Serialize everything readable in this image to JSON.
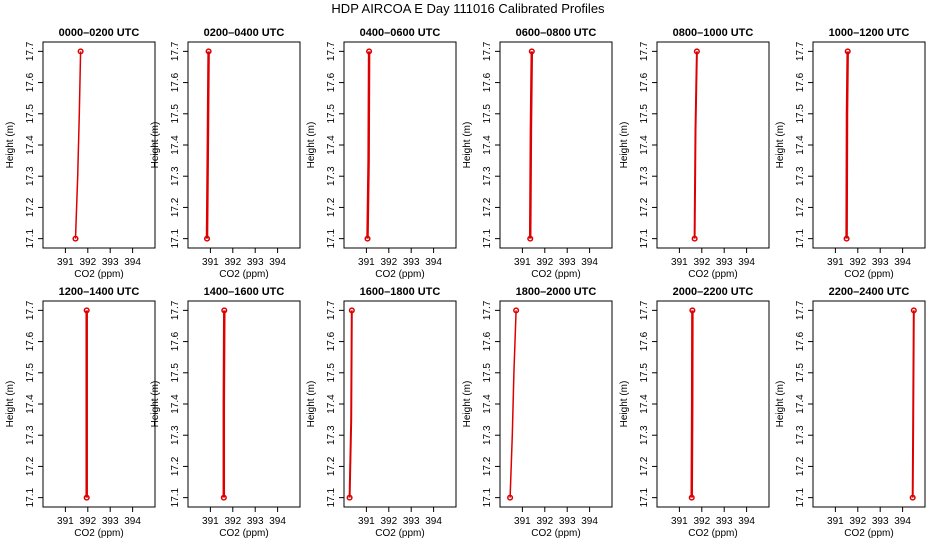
{
  "figure_title": "HDP AIRCOA E  Day 111016  Calibrated Profiles",
  "chart_data": [
    {
      "type": "line",
      "title": "0000–0200 UTC",
      "xlabel": "CO2 (ppm)",
      "ylabel": "Height (m)",
      "xlim": [
        390,
        395
      ],
      "ylim": [
        17.07,
        17.73
      ],
      "x_ticks": [
        "391",
        "392",
        "393",
        "394"
      ],
      "y_ticks": [
        "17.1",
        "17.2",
        "17.3",
        "17.4",
        "17.5",
        "17.6",
        "17.7"
      ],
      "series": [
        {
          "values": [
            [
              391.45,
              17.1
            ],
            [
              391.55,
              17.3
            ],
            [
              391.62,
              17.5
            ],
            [
              391.68,
              17.7
            ]
          ],
          "width": 1.5
        }
      ]
    },
    {
      "type": "line",
      "title": "0200–0400 UTC",
      "xlabel": "CO2 (ppm)",
      "ylabel": "Height (m)",
      "xlim": [
        390,
        395
      ],
      "ylim": [
        17.07,
        17.73
      ],
      "x_ticks": [
        "391",
        "392",
        "393",
        "394"
      ],
      "y_ticks": [
        "17.1",
        "17.2",
        "17.3",
        "17.4",
        "17.5",
        "17.6",
        "17.7"
      ],
      "series": [
        {
          "values": [
            [
              390.85,
              17.1
            ],
            [
              390.88,
              17.35
            ],
            [
              390.92,
              17.7
            ]
          ],
          "width": 2.5
        }
      ]
    },
    {
      "type": "line",
      "title": "0400–0600 UTC",
      "xlabel": "CO2 (ppm)",
      "ylabel": "Height (m)",
      "xlim": [
        390,
        395
      ],
      "ylim": [
        17.07,
        17.73
      ],
      "x_ticks": [
        "391",
        "392",
        "393",
        "394"
      ],
      "y_ticks": [
        "17.1",
        "17.2",
        "17.3",
        "17.4",
        "17.5",
        "17.6",
        "17.7"
      ],
      "series": [
        {
          "values": [
            [
              391.05,
              17.1
            ],
            [
              391.1,
              17.35
            ],
            [
              391.12,
              17.7
            ]
          ],
          "width": 2.5
        }
      ]
    },
    {
      "type": "line",
      "title": "0600–0800 UTC",
      "xlabel": "CO2 (ppm)",
      "ylabel": "Height (m)",
      "xlim": [
        390,
        395
      ],
      "ylim": [
        17.07,
        17.73
      ],
      "x_ticks": [
        "391",
        "392",
        "393",
        "394"
      ],
      "y_ticks": [
        "17.1",
        "17.2",
        "17.3",
        "17.4",
        "17.5",
        "17.6",
        "17.7"
      ],
      "series": [
        {
          "values": [
            [
              391.35,
              17.1
            ],
            [
              391.38,
              17.45
            ],
            [
              391.42,
              17.7
            ]
          ],
          "width": 2.5
        }
      ]
    },
    {
      "type": "line",
      "title": "0800–1000 UTC",
      "xlabel": "CO2 (ppm)",
      "ylabel": "Height (m)",
      "xlim": [
        390,
        395
      ],
      "ylim": [
        17.07,
        17.73
      ],
      "x_ticks": [
        "391",
        "392",
        "393",
        "394"
      ],
      "y_ticks": [
        "17.1",
        "17.2",
        "17.3",
        "17.4",
        "17.5",
        "17.6",
        "17.7"
      ],
      "series": [
        {
          "values": [
            [
              391.68,
              17.1
            ],
            [
              391.72,
              17.45
            ],
            [
              391.78,
              17.7
            ]
          ],
          "width": 2
        }
      ]
    },
    {
      "type": "line",
      "title": "1000–1200 UTC",
      "xlabel": "CO2 (ppm)",
      "ylabel": "Height (m)",
      "xlim": [
        390,
        395
      ],
      "ylim": [
        17.07,
        17.73
      ],
      "x_ticks": [
        "391",
        "392",
        "393",
        "394"
      ],
      "y_ticks": [
        "17.1",
        "17.2",
        "17.3",
        "17.4",
        "17.5",
        "17.6",
        "17.7"
      ],
      "series": [
        {
          "values": [
            [
              391.5,
              17.1
            ],
            [
              391.52,
              17.5
            ],
            [
              391.55,
              17.7
            ]
          ],
          "width": 2.5
        }
      ]
    },
    {
      "type": "line",
      "title": "1200–1400 UTC",
      "xlabel": "CO2 (ppm)",
      "ylabel": "Height (m)",
      "xlim": [
        390,
        395
      ],
      "ylim": [
        17.07,
        17.73
      ],
      "x_ticks": [
        "391",
        "392",
        "393",
        "394"
      ],
      "y_ticks": [
        "17.1",
        "17.2",
        "17.3",
        "17.4",
        "17.5",
        "17.6",
        "17.7"
      ],
      "series": [
        {
          "values": [
            [
              391.95,
              17.1
            ],
            [
              391.95,
              17.4
            ],
            [
              391.95,
              17.7
            ]
          ],
          "width": 2.5
        }
      ]
    },
    {
      "type": "line",
      "title": "1400–1600 UTC",
      "xlabel": "CO2 (ppm)",
      "ylabel": "Height (m)",
      "xlim": [
        390,
        395
      ],
      "ylim": [
        17.07,
        17.73
      ],
      "x_ticks": [
        "391",
        "392",
        "393",
        "394"
      ],
      "y_ticks": [
        "17.1",
        "17.2",
        "17.3",
        "17.4",
        "17.5",
        "17.6",
        "17.7"
      ],
      "series": [
        {
          "values": [
            [
              391.6,
              17.1
            ],
            [
              391.6,
              17.4
            ],
            [
              391.62,
              17.7
            ]
          ],
          "width": 2.5
        }
      ]
    },
    {
      "type": "line",
      "title": "1600–1800 UTC",
      "xlabel": "CO2 (ppm)",
      "ylabel": "Height (m)",
      "xlim": [
        390,
        395
      ],
      "ylim": [
        17.07,
        17.73
      ],
      "x_ticks": [
        "391",
        "392",
        "393",
        "394"
      ],
      "y_ticks": [
        "17.1",
        "17.2",
        "17.3",
        "17.4",
        "17.5",
        "17.6",
        "17.7"
      ],
      "series": [
        {
          "values": [
            [
              390.25,
              17.1
            ],
            [
              390.32,
              17.35
            ],
            [
              390.35,
              17.7
            ]
          ],
          "width": 2
        }
      ]
    },
    {
      "type": "line",
      "title": "1800–2000 UTC",
      "xlabel": "CO2 (ppm)",
      "ylabel": "Height (m)",
      "xlim": [
        390,
        395
      ],
      "ylim": [
        17.07,
        17.73
      ],
      "x_ticks": [
        "391",
        "392",
        "393",
        "394"
      ],
      "y_ticks": [
        "17.1",
        "17.2",
        "17.3",
        "17.4",
        "17.5",
        "17.6",
        "17.7"
      ],
      "series": [
        {
          "values": [
            [
              390.45,
              17.1
            ],
            [
              390.55,
              17.3
            ],
            [
              390.62,
              17.5
            ],
            [
              390.72,
              17.7
            ]
          ],
          "width": 1.5
        }
      ]
    },
    {
      "type": "line",
      "title": "2000–2200 UTC",
      "xlabel": "CO2 (ppm)",
      "ylabel": "Height (m)",
      "xlim": [
        390,
        395
      ],
      "ylim": [
        17.07,
        17.73
      ],
      "x_ticks": [
        "391",
        "392",
        "393",
        "394"
      ],
      "y_ticks": [
        "17.1",
        "17.2",
        "17.3",
        "17.4",
        "17.5",
        "17.6",
        "17.7"
      ],
      "series": [
        {
          "values": [
            [
              391.55,
              17.1
            ],
            [
              391.57,
              17.4
            ],
            [
              391.58,
              17.7
            ]
          ],
          "width": 2.5
        }
      ]
    },
    {
      "type": "line",
      "title": "2200–2400 UTC",
      "xlabel": "CO2 (ppm)",
      "ylabel": "Height (m)",
      "xlim": [
        390,
        395
      ],
      "ylim": [
        17.07,
        17.73
      ],
      "x_ticks": [
        "391",
        "392",
        "393",
        "394"
      ],
      "y_ticks": [
        "17.1",
        "17.2",
        "17.3",
        "17.4",
        "17.5",
        "17.6",
        "17.7"
      ],
      "series": [
        {
          "values": [
            [
              394.45,
              17.1
            ],
            [
              394.47,
              17.3
            ],
            [
              394.5,
              17.7
            ]
          ],
          "width": 2
        }
      ]
    }
  ],
  "colors": {
    "line": "#dd0000",
    "axes": "#000000"
  }
}
